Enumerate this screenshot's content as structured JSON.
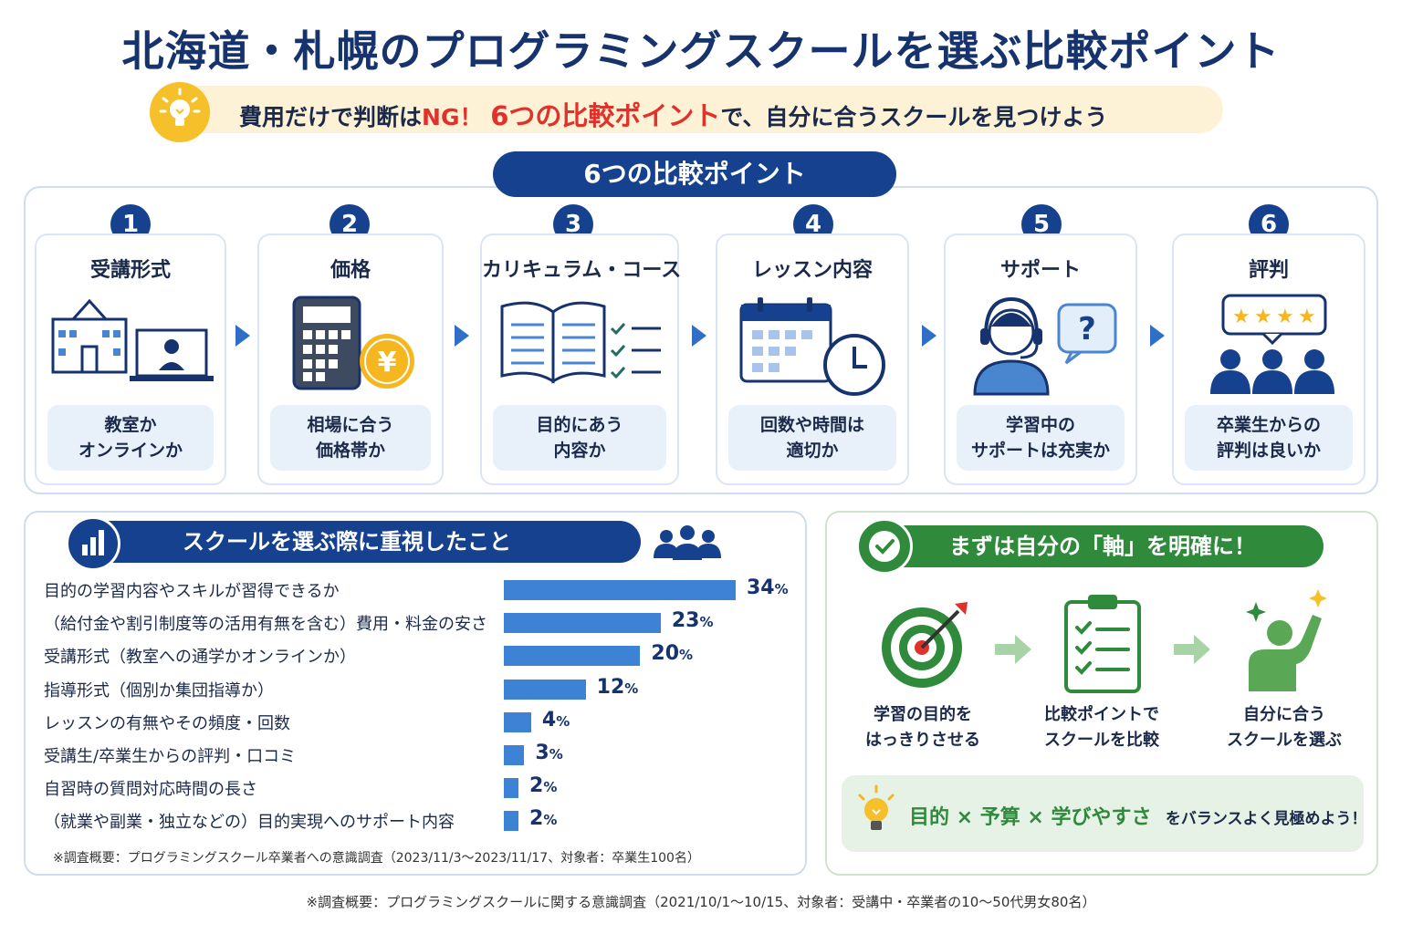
{
  "title": "北海道・札幌のプログラミングスクールを選ぶ比較ポイント",
  "subtitle": {
    "part1": "費用だけで判断は",
    "ng": "NG！",
    "highlight": "6つの比較ポイント",
    "part2": "で、自分に合うスクールを見つけよう"
  },
  "points_header": "6つの比較ポイント",
  "points": [
    {
      "num": "1",
      "title": "受講形式",
      "desc1": "教室か",
      "desc2": "オンラインか",
      "icon": "school-online-icon"
    },
    {
      "num": "2",
      "title": "価格",
      "desc1": "相場に合う",
      "desc2": "価格帯か",
      "icon": "calculator-yen-icon"
    },
    {
      "num": "3",
      "title": "カリキュラム・コース",
      "desc1": "目的にあう",
      "desc2": "内容か",
      "icon": "book-checklist-icon"
    },
    {
      "num": "4",
      "title": "レッスン内容",
      "desc1": "回数や時間は",
      "desc2": "適切か",
      "icon": "calendar-clock-icon"
    },
    {
      "num": "5",
      "title": "サポート",
      "desc1": "学習中の",
      "desc2": "サポートは充実か",
      "icon": "support-headset-icon"
    },
    {
      "num": "6",
      "title": "評判",
      "desc1": "卒業生からの",
      "desc2": "評判は良いか",
      "icon": "review-stars-icon"
    }
  ],
  "survey": {
    "header": "スクールを選ぶ際に重視したこと",
    "rows": [
      {
        "label": "目的の学習内容やスキルが習得できるか",
        "value": 34,
        "unit": "%"
      },
      {
        "label": "（給付金や割引制度等の活用有無を含む）費用・料金の安さ",
        "value": 23,
        "unit": "%"
      },
      {
        "label": "受講形式（教室への通学かオンラインか）",
        "value": 20,
        "unit": "%"
      },
      {
        "label": "指導形式（個別か集団指導か）",
        "value": 12,
        "unit": "%"
      },
      {
        "label": "レッスンの有無やその頻度・回数",
        "value": 4,
        "unit": "%"
      },
      {
        "label": "受講生/卒業生からの評判・口コミ",
        "value": 3,
        "unit": "%"
      },
      {
        "label": "自習時の質問対応時間の長さ",
        "value": 2,
        "unit": "%"
      },
      {
        "label": "（就業や副業・独立などの）目的実現へのサポート内容",
        "value": 2,
        "unit": "%"
      }
    ],
    "note": "※調査概要：プログラミングスクール卒業者への意識調査（2023/11/3〜2023/11/17、対象者：卒業生100名）"
  },
  "axis": {
    "header": "まずは自分の「軸」を明確に！",
    "steps": [
      {
        "line1": "学習の目的を",
        "line2": "はっきりさせる",
        "icon": "target-icon"
      },
      {
        "line1": "比較ポイントで",
        "line2": "スクールを比較",
        "icon": "checklist-icon"
      },
      {
        "line1": "自分に合う",
        "line2": "スクールを選ぶ",
        "icon": "success-person-icon"
      }
    ],
    "balance_main": "目的 × 予算 × 学びやすさ",
    "balance_rest": "をバランスよく見極めよう！"
  },
  "footer": "※調査概要：プログラミングスクールに関する意識調査（2021/10/1〜10/15、対象者：受講中・卒業者の10〜50代男女80名）",
  "colors": {
    "navy": "#16418f",
    "bar": "#3d82d4",
    "green": "#2f8a3c",
    "red": "#e0322b",
    "yellow": "#f5c02a"
  }
}
